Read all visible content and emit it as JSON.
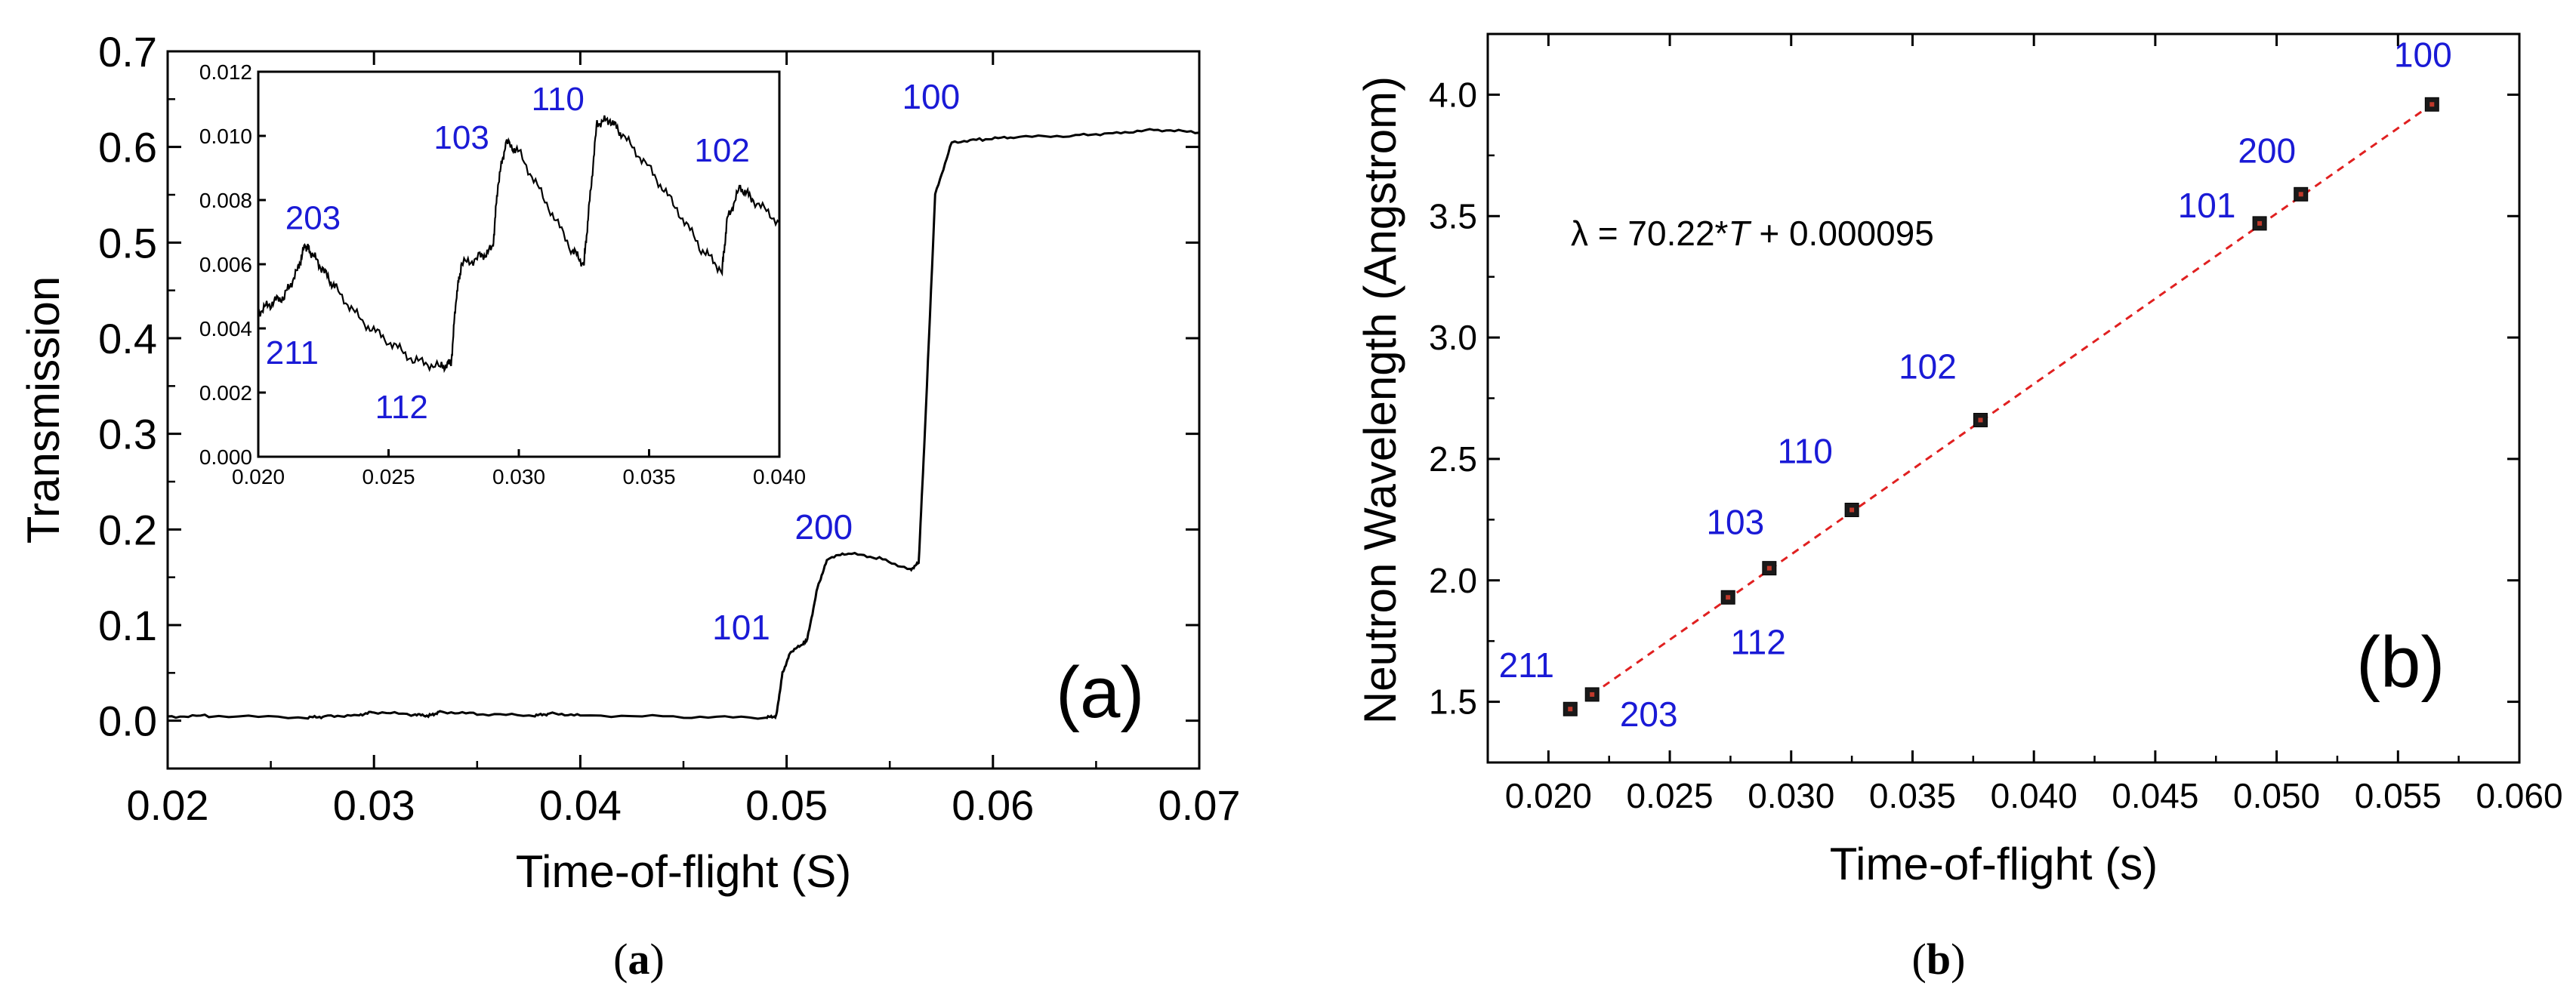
{
  "chart_data": [
    {
      "id": "a",
      "type": "line",
      "panel_label": "(a)",
      "caption": {
        "open": "(",
        "letter": "a",
        "close": ")"
      },
      "xlabel": "Time-of-flight (S)",
      "ylabel": "Transmission",
      "xlim": [
        0.02,
        0.07
      ],
      "ylim": [
        -0.05,
        0.7
      ],
      "xticks": [
        0.02,
        0.03,
        0.04,
        0.05,
        0.06,
        0.07
      ],
      "xtick_labels": [
        "0.02",
        "0.03",
        "0.04",
        "0.05",
        "0.06",
        "0.07"
      ],
      "yticks": [
        0.0,
        0.1,
        0.2,
        0.3,
        0.4,
        0.5,
        0.6,
        0.7
      ],
      "ytick_labels": [
        "0.0",
        "0.1",
        "0.2",
        "0.3",
        "0.4",
        "0.5",
        "0.6",
        "0.7"
      ],
      "series": [
        {
          "name": "Transmission",
          "x": [
            0.02,
            0.022,
            0.0268,
            0.0276,
            0.0292,
            0.03,
            0.032,
            0.0327,
            0.0332,
            0.035,
            0.0378,
            0.0385,
            0.04,
            0.045,
            0.049,
            0.0495,
            0.0498,
            0.0502,
            0.0508,
            0.051,
            0.0515,
            0.052,
            0.053,
            0.0545,
            0.056,
            0.0564,
            0.0567,
            0.0572,
            0.058,
            0.0595,
            0.061,
            0.064,
            0.066,
            0.068,
            0.07
          ],
          "y": [
            0.0045,
            0.005,
            0.003,
            0.0045,
            0.006,
            0.009,
            0.006,
            0.0053,
            0.0095,
            0.007,
            0.005,
            0.0075,
            0.006,
            0.004,
            0.003,
            0.005,
            0.05,
            0.072,
            0.08,
            0.085,
            0.14,
            0.17,
            0.175,
            0.17,
            0.158,
            0.165,
            0.3,
            0.55,
            0.605,
            0.608,
            0.61,
            0.612,
            0.615,
            0.618,
            0.615
          ]
        }
      ],
      "peak_labels": [
        {
          "text": "100",
          "x": 0.057,
          "y": 0.64
        },
        {
          "text": "200",
          "x": 0.0518,
          "y": 0.19
        },
        {
          "text": "101",
          "x": 0.0478,
          "y": 0.085
        }
      ],
      "inset": {
        "type": "line",
        "xlim": [
          0.02,
          0.04
        ],
        "ylim": [
          0.0,
          0.012
        ],
        "xticks": [
          0.02,
          0.025,
          0.03,
          0.035,
          0.04
        ],
        "xtick_labels": [
          "0.020",
          "0.025",
          "0.030",
          "0.035",
          "0.040"
        ],
        "yticks": [
          0.0,
          0.002,
          0.004,
          0.006,
          0.008,
          0.01,
          0.012
        ],
        "ytick_labels": [
          "0.000",
          "0.002",
          "0.004",
          "0.006",
          "0.008",
          "0.010",
          "0.012"
        ],
        "series": [
          {
            "name": "Transmission (zoom)",
            "x": [
              0.02,
              0.0205,
              0.021,
              0.0215,
              0.0218,
              0.022,
              0.0225,
              0.023,
              0.024,
              0.025,
              0.026,
              0.027,
              0.0274,
              0.0276,
              0.0278,
              0.0285,
              0.029,
              0.0292,
              0.0295,
              0.03,
              0.031,
              0.032,
              0.0325,
              0.0327,
              0.033,
              0.0335,
              0.034,
              0.035,
              0.036,
              0.037,
              0.0378,
              0.038,
              0.0385,
              0.039,
              0.04
            ],
            "y": [
              0.0045,
              0.0048,
              0.005,
              0.0058,
              0.0066,
              0.0064,
              0.0058,
              0.0052,
              0.0042,
              0.0036,
              0.003,
              0.0028,
              0.0029,
              0.005,
              0.006,
              0.0062,
              0.0065,
              0.0085,
              0.0098,
              0.0095,
              0.008,
              0.0065,
              0.006,
              0.0078,
              0.0104,
              0.0105,
              0.01,
              0.009,
              0.0078,
              0.0065,
              0.0058,
              0.0074,
              0.0084,
              0.008,
              0.0073
            ]
          }
        ],
        "peak_labels": [
          {
            "text": "203",
            "x": 0.0221,
            "y": 0.0071
          },
          {
            "text": "211",
            "x": 0.0213,
            "y": 0.0029
          },
          {
            "text": "112",
            "x": 0.0255,
            "y": 0.0012
          },
          {
            "text": "103",
            "x": 0.0278,
            "y": 0.0096
          },
          {
            "text": "110",
            "x": 0.0315,
            "y": 0.0108
          },
          {
            "text": "102",
            "x": 0.0378,
            "y": 0.0092
          }
        ]
      }
    },
    {
      "id": "b",
      "type": "scatter",
      "panel_label": "(b)",
      "caption": {
        "open": "(",
        "letter": "b",
        "close": ")"
      },
      "xlabel": "Time-of-flight (s)",
      "ylabel": "Neutron Wavelength (Angstrom)",
      "xlim": [
        0.0175,
        0.06
      ],
      "ylim": [
        1.25,
        4.25
      ],
      "xticks": [
        0.02,
        0.025,
        0.03,
        0.035,
        0.04,
        0.045,
        0.05,
        0.055,
        0.06
      ],
      "xtick_labels": [
        "0.020",
        "0.025",
        "0.030",
        "0.035",
        "0.040",
        "0.045",
        "0.050",
        "0.055",
        "0.060"
      ],
      "yticks": [
        1.5,
        2.0,
        2.5,
        3.0,
        3.5,
        4.0
      ],
      "ytick_labels": [
        "1.5",
        "2.0",
        "2.5",
        "3.0",
        "3.5",
        "4.0"
      ],
      "points": [
        {
          "label": "211",
          "x": 0.0209,
          "y": 1.47
        },
        {
          "label": "203",
          "x": 0.0218,
          "y": 1.53
        },
        {
          "label": "112",
          "x": 0.0274,
          "y": 1.93
        },
        {
          "label": "103",
          "x": 0.0291,
          "y": 2.05
        },
        {
          "label": "110",
          "x": 0.0325,
          "y": 2.29
        },
        {
          "label": "102",
          "x": 0.0378,
          "y": 2.66
        },
        {
          "label": "101",
          "x": 0.0493,
          "y": 3.47
        },
        {
          "label": "200",
          "x": 0.051,
          "y": 3.59
        },
        {
          "label": "100",
          "x": 0.0564,
          "y": 3.96
        }
      ],
      "fit": {
        "slope": 70.22,
        "intercept": 9.5e-05,
        "x_range": [
          0.0218,
          0.0564
        ]
      },
      "equation": {
        "prefix": "λ = 70.22*",
        "var": "T",
        "suffix": " + 0.000095"
      }
    }
  ]
}
